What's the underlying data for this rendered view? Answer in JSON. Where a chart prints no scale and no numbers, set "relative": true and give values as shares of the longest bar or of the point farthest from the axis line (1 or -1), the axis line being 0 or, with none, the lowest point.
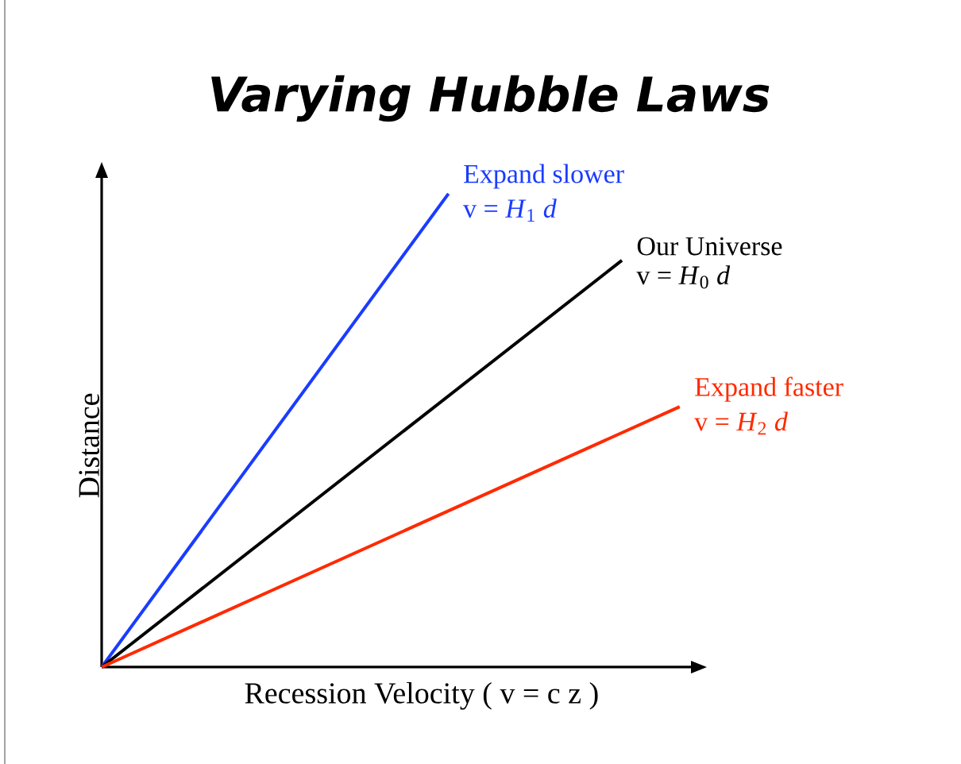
{
  "chart_data": {
    "type": "line",
    "title": "Varying Hubble Laws",
    "xlabel": "Recession Velocity  ( v = c z )",
    "ylabel": "Distance",
    "relative": true,
    "marker": "none",
    "line_style": "solid",
    "categories": [
      null,
      null,
      null,
      null,
      null,
      null,
      null,
      null,
      null,
      null,
      null
    ],
    "series": [
      {
        "name": "Expand slower",
        "color": "#1a3cff",
        "values": [
          0,
          null,
          null,
          null,
          null,
          null,
          1,
          null,
          null,
          null,
          null
        ]
      },
      {
        "name": "Our Universe",
        "color": "#000000",
        "values": [
          0,
          null,
          null,
          null,
          null,
          null,
          null,
          null,
          null,
          0.859,
          null
        ]
      },
      {
        "name": "Expand faster",
        "color": "#ff2a00",
        "values": [
          0,
          null,
          null,
          null,
          null,
          null,
          null,
          null,
          null,
          null,
          0.55
        ]
      }
    ],
    "annotations": [
      "v = *H*$_{1}$ *d*",
      "v = *H*$_{0}$ *d*",
      "v = *H*$_{2}$ *d*"
    ]
  }
}
